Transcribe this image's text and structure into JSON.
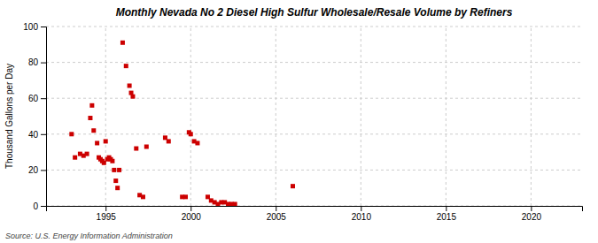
{
  "chart_data": {
    "type": "scatter",
    "title": "Monthly Nevada No 2 Diesel High Sulfur Wholesale/Resale Volume by Refiners",
    "ylabel": "Thousand Gallons per Day",
    "annotations": [
      "Source: U.S. Energy Information Administration"
    ],
    "color": "#cc0000",
    "marker": "square",
    "grid": true,
    "xlim": [
      1991.5,
      2023
    ],
    "ylim": [
      0,
      100
    ],
    "xticks": [
      1995,
      2000,
      2005,
      2010,
      2015,
      2020
    ],
    "yticks": [
      0,
      20,
      40,
      60,
      80,
      100
    ],
    "x": [
      1993.0,
      1993.2,
      1993.5,
      1993.7,
      1993.9,
      1994.1,
      1994.2,
      1994.3,
      1994.5,
      1994.6,
      1994.7,
      1994.8,
      1994.9,
      1995.0,
      1995.1,
      1995.2,
      1995.3,
      1995.4,
      1995.5,
      1995.6,
      1995.7,
      1995.8,
      1996.0,
      1996.2,
      1996.4,
      1996.5,
      1996.6,
      1996.8,
      1997.0,
      1997.2,
      1997.4,
      1998.5,
      1998.7,
      1999.5,
      1999.7,
      1999.9,
      2000.0,
      2000.2,
      2000.4,
      2001.0,
      2001.2,
      2001.4,
      2001.6,
      2001.8,
      2002.0,
      2002.2,
      2002.4,
      2002.6,
      2006.0
    ],
    "values": [
      40,
      27,
      29,
      28,
      29,
      49,
      56,
      42,
      35,
      27,
      26,
      25,
      24,
      36,
      26,
      27,
      26,
      25,
      20,
      14,
      10,
      20,
      91,
      78,
      67,
      63,
      61,
      32,
      6,
      5,
      33,
      38,
      36,
      5,
      5,
      41,
      40,
      36,
      35,
      5,
      3,
      2,
      1,
      2,
      2,
      1,
      1,
      1,
      11
    ]
  }
}
